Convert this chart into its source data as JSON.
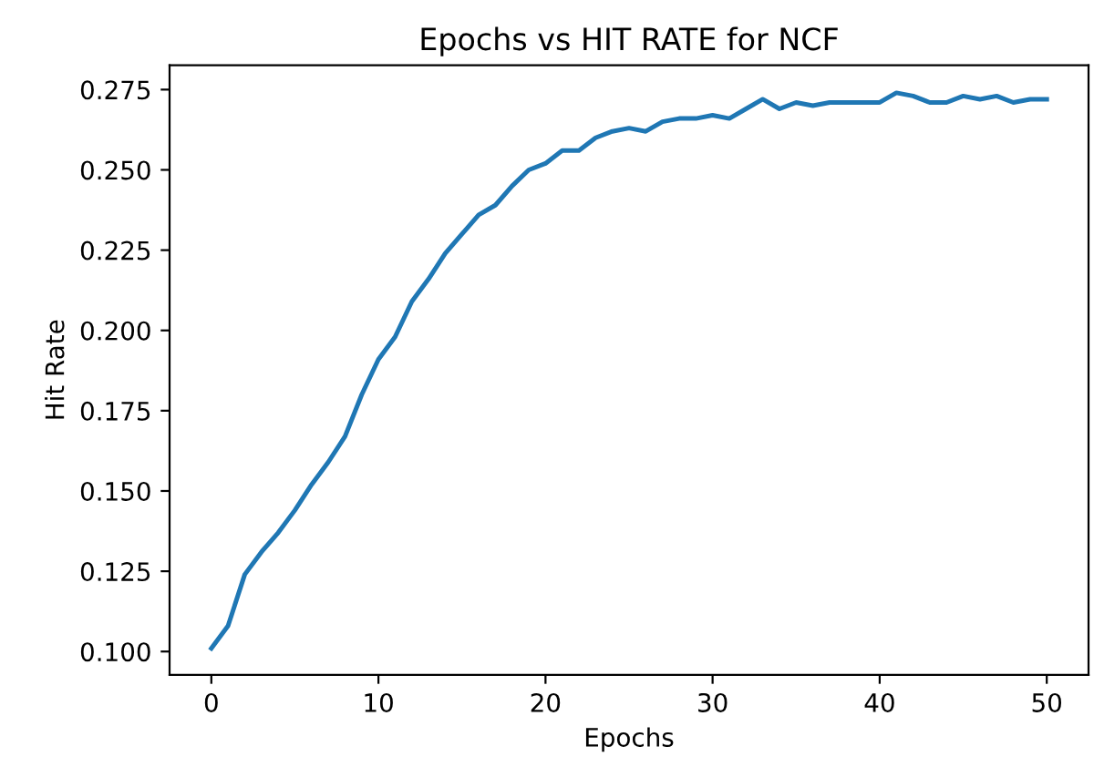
{
  "chart_data": {
    "type": "line",
    "title": "Epochs vs HIT RATE for NCF",
    "xlabel": "Epochs",
    "ylabel": "Hit Rate",
    "x": [
      0,
      1,
      2,
      3,
      4,
      5,
      6,
      7,
      8,
      9,
      10,
      11,
      12,
      13,
      14,
      15,
      16,
      17,
      18,
      19,
      20,
      21,
      22,
      23,
      24,
      25,
      26,
      27,
      28,
      29,
      30,
      31,
      32,
      33,
      34,
      35,
      36,
      37,
      38,
      39,
      40,
      41,
      42,
      43,
      44,
      45,
      46,
      47,
      48,
      49,
      50
    ],
    "series": [
      {
        "color": "#1f77b4",
        "values": [
          0.101,
          0.108,
          0.124,
          0.131,
          0.137,
          0.144,
          0.152,
          0.159,
          0.167,
          0.18,
          0.191,
          0.198,
          0.209,
          0.216,
          0.224,
          0.23,
          0.236,
          0.239,
          0.245,
          0.25,
          0.252,
          0.256,
          0.256,
          0.26,
          0.262,
          0.263,
          0.262,
          0.265,
          0.266,
          0.266,
          0.267,
          0.266,
          0.269,
          0.272,
          0.269,
          0.271,
          0.27,
          0.271,
          0.271,
          0.271,
          0.271,
          0.274,
          0.273,
          0.271,
          0.271,
          0.273,
          0.272,
          0.273,
          0.271,
          0.272,
          0.272
        ]
      }
    ],
    "xlim": [
      -2.5,
      52.5
    ],
    "ylim": [
      0.0927,
      0.2826
    ],
    "xticks": [
      0,
      10,
      20,
      30,
      40,
      50
    ],
    "yticks": [
      {
        "value": 0.1,
        "label": "0.100"
      },
      {
        "value": 0.125,
        "label": "0.125"
      },
      {
        "value": 0.15,
        "label": "0.150"
      },
      {
        "value": 0.175,
        "label": "0.175"
      },
      {
        "value": 0.2,
        "label": "0.200"
      },
      {
        "value": 0.225,
        "label": "0.225"
      },
      {
        "value": 0.25,
        "label": "0.250"
      },
      {
        "value": 0.275,
        "label": "0.275"
      }
    ],
    "grid": false,
    "marker": "none",
    "line_style": "solid"
  }
}
